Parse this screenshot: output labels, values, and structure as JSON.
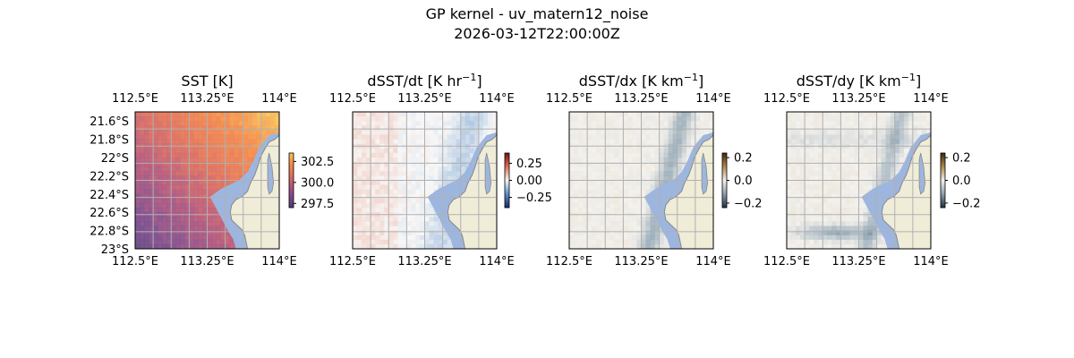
{
  "figure": {
    "title_line1": "GP kernel - uv_matern12_noise",
    "title_line2": "2026-03-12T22:00:00Z"
  },
  "chart_data": [
    {
      "type": "heatmap",
      "title": "SST [K]",
      "title_unit_sup": "",
      "title_suffix": "",
      "variable": "SST",
      "colormap": "plasma-like (purple → orange → yellow)",
      "colors": [
        "#4a3a74",
        "#7b4a8c",
        "#b4567a",
        "#e0705a",
        "#f48a48",
        "#f5c458"
      ],
      "colorbar": {
        "ticks": [
          302.5,
          300.0,
          297.5
        ],
        "tick_labels": [
          "302.5",
          "300.0",
          "297.5"
        ],
        "range": [
          297.0,
          303.5
        ]
      },
      "field": {
        "low": 298.0,
        "high": 302.6,
        "pattern": "warm north-east, cool south-west"
      },
      "lon_range": [
        112.5,
        114.0
      ],
      "lat_range": [
        -23.0,
        -21.5
      ],
      "x_ticks": [
        112.5,
        113.25,
        114.0
      ],
      "x_tick_labels": [
        "112.5°E",
        "113.25°E",
        "114°E"
      ],
      "y_ticks": [
        -21.6,
        -21.8,
        -22.0,
        -22.2,
        -22.4,
        -22.6,
        -22.8,
        -23.0
      ],
      "y_tick_labels": [
        "21.6°S",
        "21.8°S",
        "22°S",
        "22.2°S",
        "22.4°S",
        "22.6°S",
        "22.8°S",
        "23°S"
      ],
      "show_lat_labels": true,
      "grid": true
    },
    {
      "type": "heatmap",
      "title": "dSST/dt [K hr",
      "title_unit_sup": "−1",
      "title_suffix": "]",
      "variable": "dSST/dt",
      "colormap": "diverging (blue → white → red)",
      "colors": [
        "#1b2a6b",
        "#5b8fc8",
        "#f7f7f7",
        "#e07050",
        "#7a1010"
      ],
      "colorbar": {
        "ticks": [
          0.25,
          0.0,
          -0.25
        ],
        "tick_labels": [
          "0.25",
          "0.00",
          "−0.25"
        ],
        "range": [
          -0.4,
          0.4
        ]
      },
      "field": {
        "low": -0.08,
        "high": 0.05,
        "pattern": "near zero, slightly negative near coast"
      },
      "lon_range": [
        112.5,
        114.0
      ],
      "lat_range": [
        -23.0,
        -21.5
      ],
      "x_ticks": [
        112.5,
        113.25,
        114.0
      ],
      "x_tick_labels": [
        "112.5°E",
        "113.25°E",
        "114°E"
      ],
      "y_ticks": [],
      "y_tick_labels": [],
      "show_lat_labels": false,
      "grid": true
    },
    {
      "type": "heatmap",
      "title": "dSST/dx [K km",
      "title_unit_sup": "−1",
      "title_suffix": "]",
      "variable": "dSST/dx",
      "colormap": "diverging (dark slate → white → brown)",
      "colors": [
        "#1f2f3f",
        "#8aa0b0",
        "#f2efe9",
        "#b08850",
        "#3d2808"
      ],
      "colorbar": {
        "ticks": [
          0.2,
          0.0,
          -0.2
        ],
        "tick_labels": [
          "0.2",
          "0.0",
          "−0.2"
        ],
        "range": [
          -0.24,
          0.24
        ]
      },
      "field": {
        "low": -0.06,
        "high": 0.04,
        "pattern": "near zero, negative streak along coast"
      },
      "lon_range": [
        112.5,
        114.0
      ],
      "lat_range": [
        -23.0,
        -21.5
      ],
      "x_ticks": [
        112.5,
        113.25,
        114.0
      ],
      "x_tick_labels": [
        "112.5°E",
        "113.25°E",
        "114°E"
      ],
      "y_ticks": [],
      "y_tick_labels": [],
      "show_lat_labels": false,
      "grid": true
    },
    {
      "type": "heatmap",
      "title": "dSST/dy [K km",
      "title_unit_sup": "−1",
      "title_suffix": "]",
      "variable": "dSST/dy",
      "colormap": "diverging (dark slate → white → brown)",
      "colors": [
        "#1f2f3f",
        "#8aa0b0",
        "#f2efe9",
        "#b08850",
        "#3d2808"
      ],
      "colorbar": {
        "ticks": [
          0.2,
          0.0,
          -0.2
        ],
        "tick_labels": [
          "0.2",
          "0.0",
          "−0.2"
        ],
        "range": [
          -0.24,
          0.24
        ]
      },
      "field": {
        "low": -0.08,
        "high": 0.02,
        "pattern": "near zero, negative bands in south and along coast"
      },
      "lon_range": [
        112.5,
        114.0
      ],
      "lat_range": [
        -23.0,
        -21.5
      ],
      "x_ticks": [
        112.5,
        113.25,
        114.0
      ],
      "x_tick_labels": [
        "112.5°E",
        "113.25°E",
        "114°E"
      ],
      "y_ticks": [],
      "y_tick_labels": [],
      "show_lat_labels": false,
      "grid": true
    }
  ],
  "map_style": {
    "land_color": "#efecd8",
    "coast_color": "#888888",
    "masked_ocean_color": "#9db6e0",
    "grid_color": "#b0b0b0"
  }
}
